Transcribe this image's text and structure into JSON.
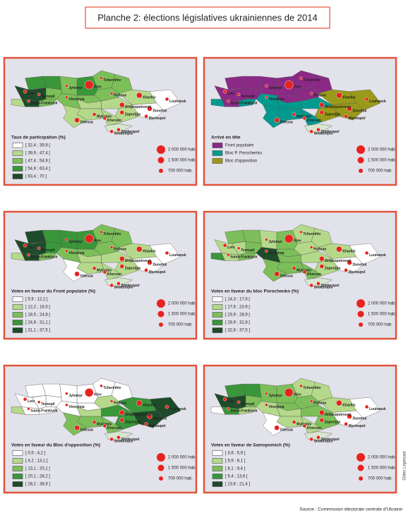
{
  "title": "Planche 2: élections législatives ukrainiennes de 2014",
  "source": "Source : Commission électorale centrale d'Ukraine",
  "credit": "Gilles Lepesant",
  "population_legend": [
    "2 000 000 hab.",
    "1 500 000 hab.",
    "700 000 hab."
  ],
  "cities": [
    "Kiev",
    "Lviv",
    "Ternopil",
    "Ivano-Frankivsk",
    "Kharkiv",
    "Donetsk",
    "Louhansk",
    "Dnipropetrovsk",
    "Zaporijjia",
    "Odessa",
    "Mykolaiv",
    "Kherson",
    "Simferopol",
    "Sébastopol",
    "Marioupol",
    "Tchernihiv",
    "Poltava",
    "Jytomyr",
    "Vinnytsia"
  ],
  "panels": [
    {
      "legend_title": "Taux de participation (%)",
      "classes": [
        {
          "label": "[ 32,4 ; 39,9 [",
          "color": "#ffffff"
        },
        {
          "label": "[ 39,9 ; 47,4 [",
          "color": "#b5d98a"
        },
        {
          "label": "[ 47,4 ; 54,9 [",
          "color": "#7cbf59"
        },
        {
          "label": "[ 54,9 ; 63,4 [",
          "color": "#3a963a"
        },
        {
          "label": "[ 63,4 ; 70 ]",
          "color": "#1e4b2a"
        }
      ],
      "region_classes": [
        3,
        3,
        2,
        3,
        2,
        2,
        1,
        0,
        0,
        1,
        1,
        2,
        2,
        1,
        1,
        1,
        1,
        2,
        2,
        4,
        4,
        4,
        1,
        2,
        null
      ]
    },
    {
      "legend_title": "Arrivé en tête",
      "classes": [
        {
          "label": "Front populaire",
          "color": "#8a2a86"
        },
        {
          "label": "Bloc P. Porochenko",
          "color": "#009b8e"
        },
        {
          "label": "Bloc d'opposition",
          "color": "#9a9a1a"
        }
      ],
      "region_classes": [
        0,
        0,
        0,
        0,
        0,
        0,
        2,
        2,
        2,
        2,
        1,
        0,
        0,
        1,
        1,
        1,
        1,
        1,
        0,
        0,
        0,
        0,
        1,
        1,
        null
      ]
    },
    {
      "legend_title": "Votes en faveur du Front populaire (%)",
      "classes": [
        {
          "label": "[ 5,9 ; 12,2 [",
          "color": "#ffffff"
        },
        {
          "label": "[ 12,2 ; 18,5 [",
          "color": "#b5d98a"
        },
        {
          "label": "[ 18,5 ; 24,8 [",
          "color": "#7cbf59"
        },
        {
          "label": "[ 24,8 ; 31,1 [",
          "color": "#3a963a"
        },
        {
          "label": "[ 31,1 ; 37,5 ]",
          "color": "#1e4b2a"
        }
      ],
      "region_classes": [
        4,
        3,
        3,
        3,
        2,
        2,
        1,
        0,
        0,
        1,
        1,
        2,
        2,
        1,
        1,
        1,
        0,
        2,
        3,
        4,
        4,
        4,
        1,
        2,
        null
      ]
    },
    {
      "legend_title": "Votes en faveur du bloc Porochenko (%)",
      "classes": [
        {
          "label": "[ 14,3 ; 17,6 [",
          "color": "#ffffff"
        },
        {
          "label": "[ 17,6 ; 23,9 [",
          "color": "#b5d98a"
        },
        {
          "label": "[ 23,9 ; 28,9 [",
          "color": "#7cbf59"
        },
        {
          "label": "[ 28,9 ; 32,8 [",
          "color": "#3a963a"
        },
        {
          "label": "[ 32,8 ; 37,5 ]",
          "color": "#1e4b2a"
        }
      ],
      "region_classes": [
        2,
        2,
        1,
        2,
        1,
        1,
        1,
        0,
        0,
        1,
        1,
        1,
        2,
        2,
        2,
        2,
        2,
        4,
        2,
        1,
        1,
        1,
        3,
        2,
        null
      ]
    },
    {
      "legend_title": "Votes en faveur du Bloc d'opposition (%)",
      "classes": [
        {
          "label": "[ 0,5 ; 4,2 [",
          "color": "#ffffff"
        },
        {
          "label": "[ 4,2 ; 13,1 [",
          "color": "#b5d98a"
        },
        {
          "label": "[ 13,1 ; 20,1 [",
          "color": "#7cbf59"
        },
        {
          "label": "[ 20,1 ; 28,2 [",
          "color": "#3a963a"
        },
        {
          "label": "[ 28,2 ; 38,9 ]",
          "color": "#1e4b2a"
        }
      ],
      "region_classes": [
        0,
        0,
        0,
        0,
        0,
        0,
        3,
        4,
        4,
        3,
        3,
        1,
        0,
        1,
        2,
        2,
        2,
        0,
        0,
        0,
        0,
        0,
        1,
        0,
        null
      ]
    },
    {
      "legend_title": "Votes en faveur de Samopomich (%)",
      "classes": [
        {
          "label": "[ 3,6 ; 5,9 [",
          "color": "#ffffff"
        },
        {
          "label": "[ 5,9 ; 8,1 [",
          "color": "#b5d98a"
        },
        {
          "label": "[ 8,1 ; 9,4 [",
          "color": "#7cbf59"
        },
        {
          "label": "[ 9,4 ; 13,6 [",
          "color": "#3a963a"
        },
        {
          "label": "[ 13,6 ; 21,4 ]",
          "color": "#1e4b2a"
        }
      ],
      "region_classes": [
        3,
        3,
        2,
        2,
        1,
        1,
        1,
        0,
        0,
        2,
        2,
        2,
        2,
        1,
        1,
        1,
        0,
        1,
        2,
        4,
        4,
        3,
        0,
        1,
        null
      ]
    }
  ]
}
